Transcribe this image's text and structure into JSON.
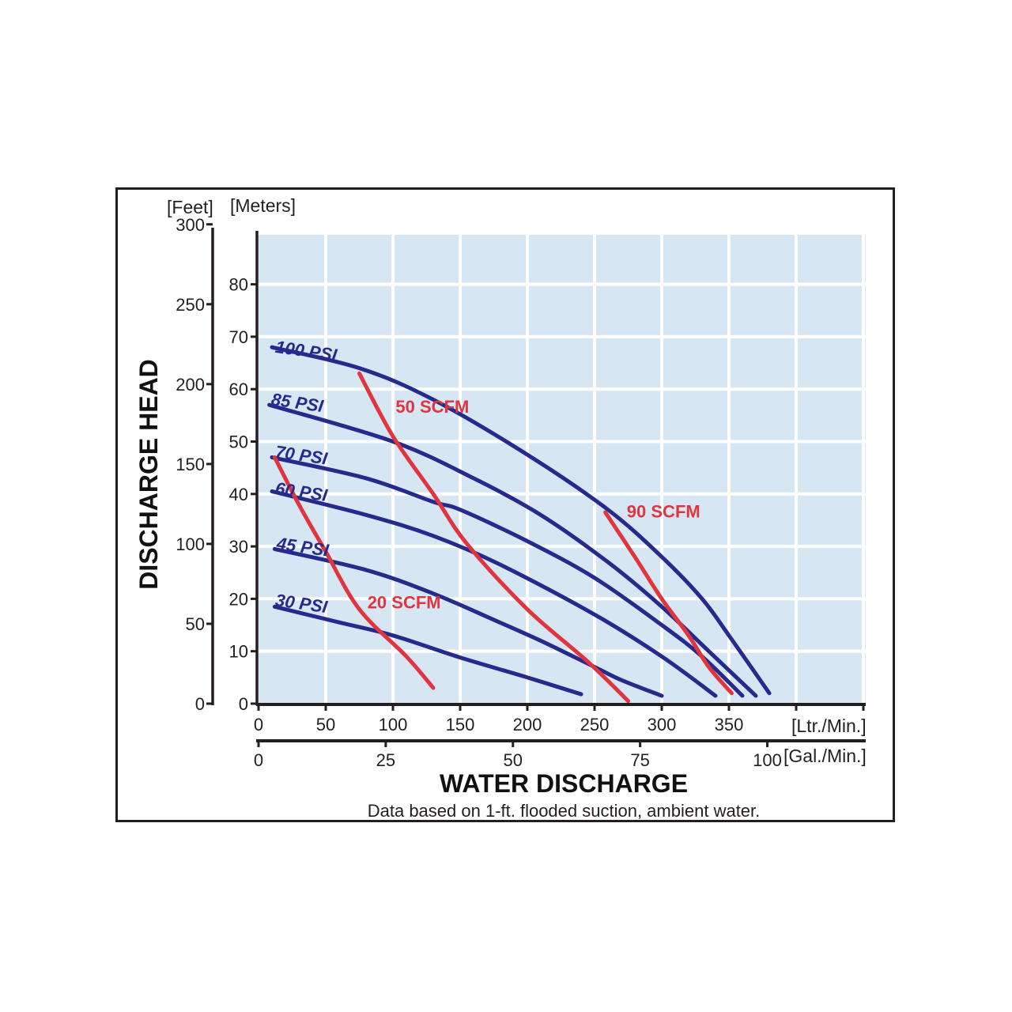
{
  "chart_data": {
    "type": "line",
    "title": "",
    "xlabel": "WATER DISCHARGE",
    "ylabel": "DISCHARGE HEAD",
    "note": "Data based on 1-ft. flooded suction, ambient water.",
    "x_unit_primary": "[Ltr./Min.]",
    "x_unit_secondary": "[Gal./Min.]",
    "y_unit_primary": "[Meters]",
    "y_unit_secondary": "[Feet]",
    "xlim": [
      0,
      450
    ],
    "ylim": [
      0,
      90
    ],
    "x_ticks": [
      "0",
      "50",
      "100",
      "150",
      "200",
      "250",
      "300",
      "350"
    ],
    "x_secondary_ticks": [
      "0",
      "25",
      "50",
      "75",
      "100"
    ],
    "y_ticks": [
      "0",
      "10",
      "20",
      "30",
      "40",
      "50",
      "60",
      "70",
      "80"
    ],
    "y_secondary_ticks": [
      "0",
      "50",
      "100",
      "150",
      "200",
      "250",
      "300"
    ],
    "grid": true,
    "colors": {
      "pressure": "#262a8c",
      "air": "#e0353e",
      "plot_bg": "#d6e6f3",
      "grid": "#ffffff"
    },
    "series": [
      {
        "name": "100 PSI",
        "group": "pressure",
        "x": [
          10,
          75,
          130,
          200,
          260,
          300,
          330,
          350,
          380
        ],
        "y": [
          68,
          64,
          58,
          47.5,
          37,
          28,
          20,
          13,
          2
        ]
      },
      {
        "name": "85 PSI",
        "group": "pressure",
        "x": [
          8,
          100,
          160,
          210,
          260,
          300,
          335,
          370
        ],
        "y": [
          57,
          50,
          43,
          36,
          27,
          18.5,
          10,
          1.5
        ]
      },
      {
        "name": "70 PSI",
        "group": "pressure",
        "x": [
          10,
          80,
          130,
          150,
          200,
          250,
          300,
          330,
          360
        ],
        "y": [
          47,
          43,
          38.5,
          37,
          31,
          24,
          15,
          9,
          1.5
        ]
      },
      {
        "name": "60 PSI",
        "group": "pressure",
        "x": [
          10,
          80,
          130,
          180,
          250,
          300,
          340
        ],
        "y": [
          40.5,
          36,
          32,
          26.5,
          17,
          9,
          1.5
        ]
      },
      {
        "name": "45 PSI",
        "group": "pressure",
        "x": [
          12,
          80,
          130,
          175,
          210,
          250,
          270,
          300
        ],
        "y": [
          29.5,
          25.5,
          21,
          16,
          12,
          7,
          4.5,
          1.5
        ]
      },
      {
        "name": "30 PSI",
        "group": "pressure",
        "x": [
          12,
          60,
          100,
          150,
          200,
          240
        ],
        "y": [
          18.5,
          15.5,
          13,
          8.8,
          5,
          1.8
        ]
      },
      {
        "name": "20 SCFM",
        "group": "air",
        "x": [
          12,
          30,
          50,
          75,
          110,
          130
        ],
        "y": [
          47,
          38,
          29,
          18,
          9,
          3
        ]
      },
      {
        "name": "50 SCFM",
        "group": "air",
        "x": [
          75,
          100,
          130,
          155,
          200,
          245,
          275
        ],
        "y": [
          63,
          51,
          40,
          30.5,
          18,
          8,
          0.5
        ]
      },
      {
        "name": "90 SCFM",
        "group": "air",
        "x": [
          258,
          280,
          300,
          320,
          335,
          352
        ],
        "y": [
          36.5,
          28,
          20,
          13,
          7,
          2
        ]
      }
    ],
    "series_labels": [
      {
        "text": "100 PSI",
        "x": 12,
        "y": 67
      },
      {
        "text": "85 PSI",
        "x": 9,
        "y": 57
      },
      {
        "text": "70 PSI",
        "x": 12,
        "y": 47
      },
      {
        "text": "60 PSI",
        "x": 12,
        "y": 40
      },
      {
        "text": "45 PSI",
        "x": 13,
        "y": 29.5
      },
      {
        "text": "30 PSI",
        "x": 12,
        "y": 18.7
      },
      {
        "text": "50 SCFM",
        "x": 102,
        "y": 55.5
      },
      {
        "text": "90 SCFM",
        "x": 274,
        "y": 35.5
      },
      {
        "text": "20 SCFM",
        "x": 81,
        "y": 18.2
      }
    ]
  }
}
